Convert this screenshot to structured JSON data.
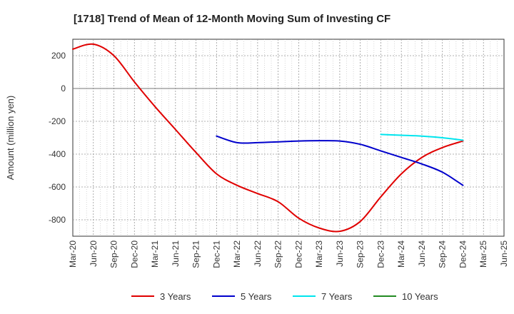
{
  "chart_data": {
    "type": "line",
    "title": "[1718]  Trend of Mean of 12-Month Moving Sum of Investing CF",
    "xlabel": "",
    "ylabel": "Amount (million yen)",
    "ylim": [
      -900,
      300
    ],
    "yticks": [
      200,
      0,
      -200,
      -400,
      -600,
      -800
    ],
    "categories": [
      "Mar-20",
      "Jun-20",
      "Sep-20",
      "Dec-20",
      "Mar-21",
      "Jun-21",
      "Sep-21",
      "Dec-21",
      "Mar-22",
      "Jun-22",
      "Sep-22",
      "Dec-22",
      "Mar-23",
      "Jun-23",
      "Sep-23",
      "Dec-23",
      "Mar-24",
      "Jun-24",
      "Sep-24",
      "Dec-24",
      "Mar-25",
      "Jun-25"
    ],
    "grid": true,
    "legend_position": "bottom",
    "series": [
      {
        "name": "3 Years",
        "color": "#e00000",
        "values": [
          240,
          270,
          200,
          40,
          -110,
          -250,
          -390,
          -520,
          -590,
          -640,
          -690,
          -790,
          -850,
          -870,
          -810,
          -660,
          -520,
          -420,
          -360,
          -320,
          null,
          null
        ]
      },
      {
        "name": "5 Years",
        "color": "#0000cc",
        "values": [
          null,
          null,
          null,
          null,
          null,
          null,
          null,
          -290,
          -330,
          -330,
          -325,
          -320,
          -318,
          -320,
          -340,
          -380,
          -420,
          -460,
          -510,
          -590,
          null,
          null
        ]
      },
      {
        "name": "7 Years",
        "color": "#00e5ee",
        "values": [
          null,
          null,
          null,
          null,
          null,
          null,
          null,
          null,
          null,
          null,
          null,
          null,
          null,
          null,
          null,
          -280,
          -285,
          -290,
          -300,
          -315,
          null,
          null
        ]
      },
      {
        "name": "10 Years",
        "color": "#228b22",
        "values": [
          null,
          null,
          null,
          null,
          null,
          null,
          null,
          null,
          null,
          null,
          null,
          null,
          null,
          null,
          null,
          null,
          null,
          null,
          null,
          null,
          null,
          null
        ]
      }
    ]
  }
}
